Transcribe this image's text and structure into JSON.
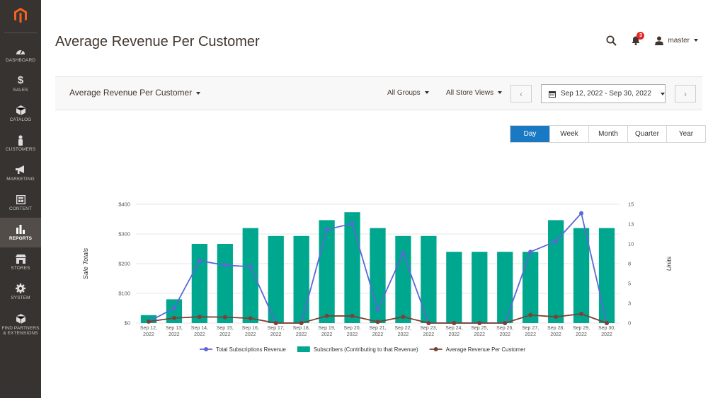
{
  "sidebar": {
    "items": [
      {
        "label": "DASHBOARD",
        "icon": "dashboard-icon"
      },
      {
        "label": "SALES",
        "icon": "dollar-icon"
      },
      {
        "label": "CATALOG",
        "icon": "box-icon"
      },
      {
        "label": "CUSTOMERS",
        "icon": "person-icon"
      },
      {
        "label": "MARKETING",
        "icon": "megaphone-icon"
      },
      {
        "label": "CONTENT",
        "icon": "layout-icon"
      },
      {
        "label": "REPORTS",
        "icon": "bar-chart-icon",
        "active": true
      },
      {
        "label": "STORES",
        "icon": "storefront-icon"
      },
      {
        "label": "SYSTEM",
        "icon": "gear-icon"
      },
      {
        "label": "FIND PARTNERS & EXTENSIONS",
        "icon": "partners-box-icon"
      }
    ]
  },
  "header": {
    "title": "Average Revenue Per Customer",
    "notifications_count": "3",
    "user": "master"
  },
  "toolbar": {
    "report": "Average Revenue Per Customer",
    "groups": "All Groups",
    "store_views": "All Store Views",
    "date_range": "Sep 12, 2022 - Sep 30, 2022"
  },
  "period_tabs": [
    "Day",
    "Week",
    "Month",
    "Quarter",
    "Year"
  ],
  "active_period": "Day",
  "colors": {
    "accent": "#1979c3",
    "bars": "#00a78f",
    "line_revenue": "#5b67d6",
    "line_avg": "#7b4234",
    "sidebar": "#373330"
  },
  "chart_data": {
    "type": "bar",
    "ylabel": "Sale Totals",
    "y2label": "Units",
    "y_ticks": [
      "$0",
      "$100",
      "$200",
      "$300",
      "$400"
    ],
    "y2_ticks": [
      "0",
      "3",
      "5",
      "8",
      "10",
      "13",
      "15"
    ],
    "ylim": [
      0,
      400
    ],
    "y2lim": [
      0,
      15
    ],
    "categories": [
      [
        "Sep 12,",
        "2022"
      ],
      [
        "Sep 13,",
        "2022"
      ],
      [
        "Sep 14,",
        "2022"
      ],
      [
        "Sep 15,",
        "2022"
      ],
      [
        "Sep 16,",
        "2022"
      ],
      [
        "Sep 17,",
        "2022"
      ],
      [
        "Sep 18,",
        "2022"
      ],
      [
        "Sep 19,",
        "2022"
      ],
      [
        "Sep 20,",
        "2022"
      ],
      [
        "Sep 21,",
        "2022"
      ],
      [
        "Sep 22,",
        "2022"
      ],
      [
        "Sep 23,",
        "2022"
      ],
      [
        "Sep 24,",
        "2022"
      ],
      [
        "Sep 25,",
        "2022"
      ],
      [
        "Sep 26,",
        "2022"
      ],
      [
        "Sep 27,",
        "2022"
      ],
      [
        "Sep 28,",
        "2022"
      ],
      [
        "Sep 29,",
        "2022"
      ],
      [
        "Sep 30,",
        "2022"
      ]
    ],
    "series": [
      {
        "name": "Total Subscriptions Revenue",
        "type": "line",
        "axis": "left",
        "values": [
          5,
          50,
          210,
          195,
          190,
          0,
          0,
          315,
          335,
          45,
          235,
          0,
          0,
          0,
          0,
          240,
          275,
          370,
          0
        ]
      },
      {
        "name": "Subscribers (Contributing to that Revenue)",
        "type": "bar",
        "axis": "right",
        "values": [
          1,
          3,
          10,
          10,
          12,
          11,
          11,
          13,
          14,
          12,
          11,
          11,
          9,
          9,
          9,
          9,
          13,
          12,
          12
        ]
      },
      {
        "name": "Average Revenue Per Customer",
        "type": "line",
        "axis": "left",
        "values": [
          5,
          17,
          21,
          20,
          16,
          0,
          0,
          24,
          24,
          4,
          21,
          0,
          0,
          0,
          0,
          27,
          21,
          31,
          0
        ]
      }
    ],
    "legend": "bottom",
    "grid": true
  }
}
